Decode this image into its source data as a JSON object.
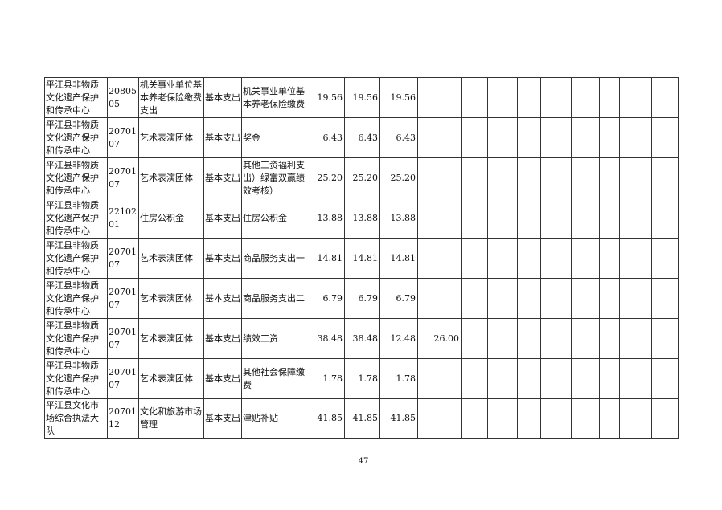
{
  "rows": [
    {
      "unit": "平江县非物质文化遗产保护和传承中心",
      "code": "2080505",
      "subject": "机关事业单位基本养老保险缴费支出",
      "type": "基本支出",
      "item": "机关事业单位基本养老保险缴费",
      "c1": "19.56",
      "c2": "19.56",
      "c3": "19.56",
      "c4": ""
    },
    {
      "unit": "平江县非物质文化遗产保护和传承中心",
      "code": "2070107",
      "subject": "艺术表演团体",
      "type": "基本支出",
      "item": "奖金",
      "c1": "6.43",
      "c2": "6.43",
      "c3": "6.43",
      "c4": ""
    },
    {
      "unit": "平江县非物质文化遗产保护和传承中心",
      "code": "2070107",
      "subject": "艺术表演团体",
      "type": "基本支出",
      "item": "其他工资福利支出）绿富双赢绩效考核）",
      "c1": "25.20",
      "c2": "25.20",
      "c3": "25.20",
      "c4": ""
    },
    {
      "unit": "平江县非物质文化遗产保护和传承中心",
      "code": "2210201",
      "subject": "住房公积金",
      "type": "基本支出",
      "item": "住房公积金",
      "c1": "13.88",
      "c2": "13.88",
      "c3": "13.88",
      "c4": ""
    },
    {
      "unit": "平江县非物质文化遗产保护和传承中心",
      "code": "2070107",
      "subject": "艺术表演团体",
      "type": "基本支出",
      "item": "商品服务支出一",
      "c1": "14.81",
      "c2": "14.81",
      "c3": "14.81",
      "c4": ""
    },
    {
      "unit": "平江县非物质文化遗产保护和传承中心",
      "code": "2070107",
      "subject": "艺术表演团体",
      "type": "基本支出",
      "item": "商品服务支出二",
      "c1": "6.79",
      "c2": "6.79",
      "c3": "6.79",
      "c4": ""
    },
    {
      "unit": "平江县非物质文化遗产保护和传承中心",
      "code": "2070107",
      "subject": "艺术表演团体",
      "type": "基本支出",
      "item": "绩效工资",
      "c1": "38.48",
      "c2": "38.48",
      "c3": "12.48",
      "c4": "26.00"
    },
    {
      "unit": "平江县非物质文化遗产保护和传承中心",
      "code": "2070107",
      "subject": "艺术表演团体",
      "type": "基本支出",
      "item": "其他社会保障缴费",
      "c1": "1.78",
      "c2": "1.78",
      "c3": "1.78",
      "c4": ""
    },
    {
      "unit": "平江县文化市场综合执法大队",
      "code": "2070112",
      "subject": "文化和旅游市场管理",
      "type": "基本支出",
      "item": "津贴补贴",
      "c1": "41.85",
      "c2": "41.85",
      "c3": "41.85",
      "c4": ""
    }
  ],
  "page_number": "47"
}
